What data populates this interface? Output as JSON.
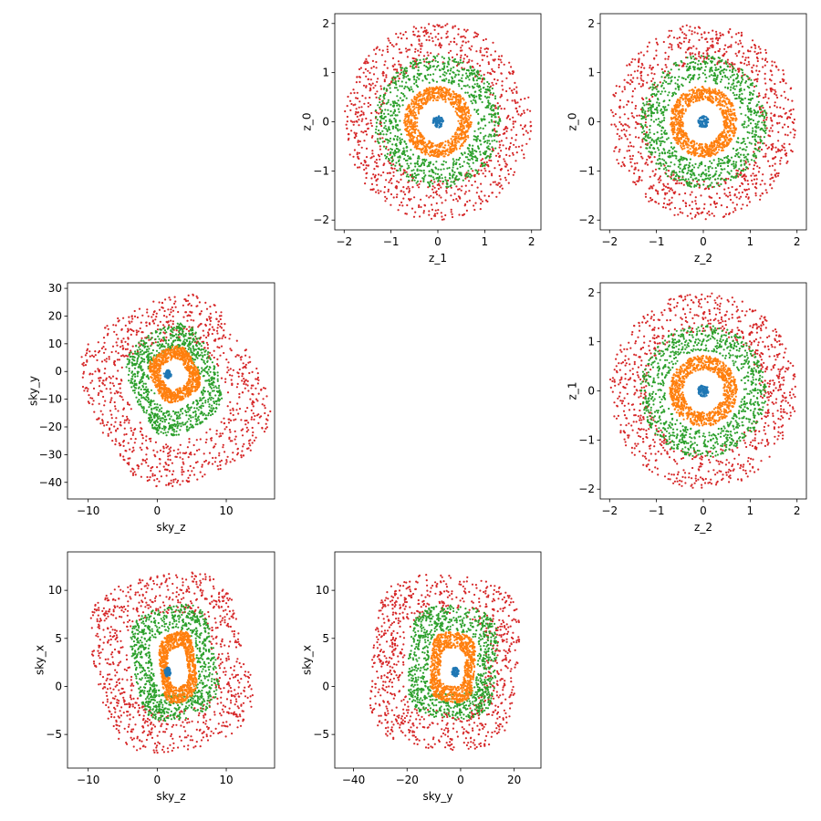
{
  "figure": {
    "layout": "3x3 grid, panels at (row,col): (0,1),(0,2),(1,0),(1,2),(2,0),(2,1); empty at (0,0),(1,1),(2,2)",
    "ring_colors": [
      "#1f77b4",
      "#ff7f0e",
      "#2ca02c",
      "#d62728"
    ],
    "ring_order": [
      "innermost (blue, radius ~0.1)",
      "orange (radius ~0.7)",
      "green (radius ~1.35)",
      "red (radius ~2.0)"
    ]
  },
  "chart_data": [
    {
      "type": "scatter",
      "panel": "row0-col1",
      "xlabel": "z_1",
      "ylabel": "z_0",
      "xlim": [
        -2.2,
        2.2
      ],
      "ylim": [
        -2.2,
        2.2
      ],
      "xticks": [
        -2,
        -1,
        0,
        1,
        2
      ],
      "yticks": [
        -2,
        -1,
        0,
        1,
        2
      ],
      "shape": "concentric-disks",
      "series": [
        {
          "color": "#1f77b4",
          "radius": 0.12,
          "approx_points": 80
        },
        {
          "color": "#ff7f0e",
          "radius": 0.72,
          "approx_points": 900
        },
        {
          "color": "#2ca02c",
          "radius": 1.35,
          "approx_points": 900
        },
        {
          "color": "#d62728",
          "radius": 2.0,
          "approx_points": 900
        }
      ]
    },
    {
      "type": "scatter",
      "panel": "row0-col2",
      "xlabel": "z_2",
      "ylabel": "z_0",
      "xlim": [
        -2.2,
        2.2
      ],
      "ylim": [
        -2.2,
        2.2
      ],
      "xticks": [
        -2,
        -1,
        0,
        1,
        2
      ],
      "yticks": [
        -2,
        -1,
        0,
        1,
        2
      ],
      "shape": "concentric-disks",
      "series": [
        {
          "color": "#1f77b4",
          "radius": 0.12,
          "approx_points": 80
        },
        {
          "color": "#ff7f0e",
          "radius": 0.72,
          "approx_points": 900
        },
        {
          "color": "#2ca02c",
          "radius": 1.35,
          "approx_points": 900
        },
        {
          "color": "#d62728",
          "radius": 2.0,
          "approx_points": 900
        }
      ]
    },
    {
      "type": "scatter",
      "panel": "row1-col2",
      "xlabel": "z_2",
      "ylabel": "z_1",
      "xlim": [
        -2.2,
        2.2
      ],
      "ylim": [
        -2.2,
        2.2
      ],
      "xticks": [
        -2,
        -1,
        0,
        1,
        2
      ],
      "yticks": [
        -2,
        -1,
        0,
        1,
        2
      ],
      "shape": "concentric-disks",
      "series": [
        {
          "color": "#1f77b4",
          "radius": 0.12,
          "approx_points": 80
        },
        {
          "color": "#ff7f0e",
          "radius": 0.72,
          "approx_points": 900
        },
        {
          "color": "#2ca02c",
          "radius": 1.35,
          "approx_points": 900
        },
        {
          "color": "#d62728",
          "radius": 2.0,
          "approx_points": 900
        }
      ]
    },
    {
      "type": "scatter",
      "panel": "row1-col0",
      "xlabel": "sky_z",
      "ylabel": "sky_y",
      "xlim": [
        -13,
        17
      ],
      "ylim": [
        -46,
        32
      ],
      "xticks": [
        -10,
        0,
        10
      ],
      "yticks": [
        -40,
        -30,
        -20,
        -10,
        0,
        10,
        20,
        30
      ],
      "shape": "distorted-rings",
      "series": [
        {
          "color": "#1f77b4",
          "center": [
            1.5,
            -1
          ],
          "extent": [
            0.5,
            1.5
          ],
          "approx_points": 80
        },
        {
          "color": "#ff7f0e",
          "center": [
            2.5,
            -1
          ],
          "extent": [
            3.5,
            10
          ],
          "approx_points": 900
        },
        {
          "color": "#2ca02c",
          "center": [
            2.5,
            -3
          ],
          "extent": [
            6.5,
            20
          ],
          "approx_points": 900
        },
        {
          "color": "#d62728",
          "center": [
            2.5,
            -7
          ],
          "extent": [
            13,
            34
          ],
          "approx_points": 900
        }
      ]
    },
    {
      "type": "scatter",
      "panel": "row2-col0",
      "xlabel": "sky_z",
      "ylabel": "sky_x",
      "xlim": [
        -13,
        17
      ],
      "ylim": [
        -8.5,
        14
      ],
      "xticks": [
        -10,
        0,
        10
      ],
      "yticks": [
        -5,
        0,
        5,
        10
      ],
      "shape": "distorted-rings",
      "series": [
        {
          "color": "#1f77b4",
          "center": [
            1.5,
            1.5
          ],
          "extent": [
            0.5,
            0.5
          ],
          "approx_points": 80
        },
        {
          "color": "#ff7f0e",
          "center": [
            3,
            2
          ],
          "extent": [
            3,
            4
          ],
          "approx_points": 900
        },
        {
          "color": "#2ca02c",
          "center": [
            2.5,
            2.5
          ],
          "extent": [
            7,
            6.5
          ],
          "approx_points": 900
        },
        {
          "color": "#d62728",
          "center": [
            2,
            2.5
          ],
          "extent": [
            13,
            10
          ],
          "approx_points": 900
        }
      ]
    },
    {
      "type": "scatter",
      "panel": "row2-col1",
      "xlabel": "sky_y",
      "ylabel": "sky_x",
      "xlim": [
        -47,
        30
      ],
      "ylim": [
        -8.5,
        14
      ],
      "xticks": [
        -40,
        -20,
        0,
        20
      ],
      "yticks": [
        -5,
        0,
        5,
        10
      ],
      "shape": "distorted-rings",
      "series": [
        {
          "color": "#1f77b4",
          "center": [
            -2,
            1.5
          ],
          "extent": [
            1.5,
            0.5
          ],
          "approx_points": 80
        },
        {
          "color": "#ff7f0e",
          "center": [
            -3,
            2
          ],
          "extent": [
            10,
            4
          ],
          "approx_points": 900
        },
        {
          "color": "#2ca02c",
          "center": [
            -3,
            2.5
          ],
          "extent": [
            20,
            6.5
          ],
          "approx_points": 900
        },
        {
          "color": "#d62728",
          "center": [
            -6,
            2.5
          ],
          "extent": [
            33,
            10
          ],
          "approx_points": 900
        }
      ]
    }
  ]
}
